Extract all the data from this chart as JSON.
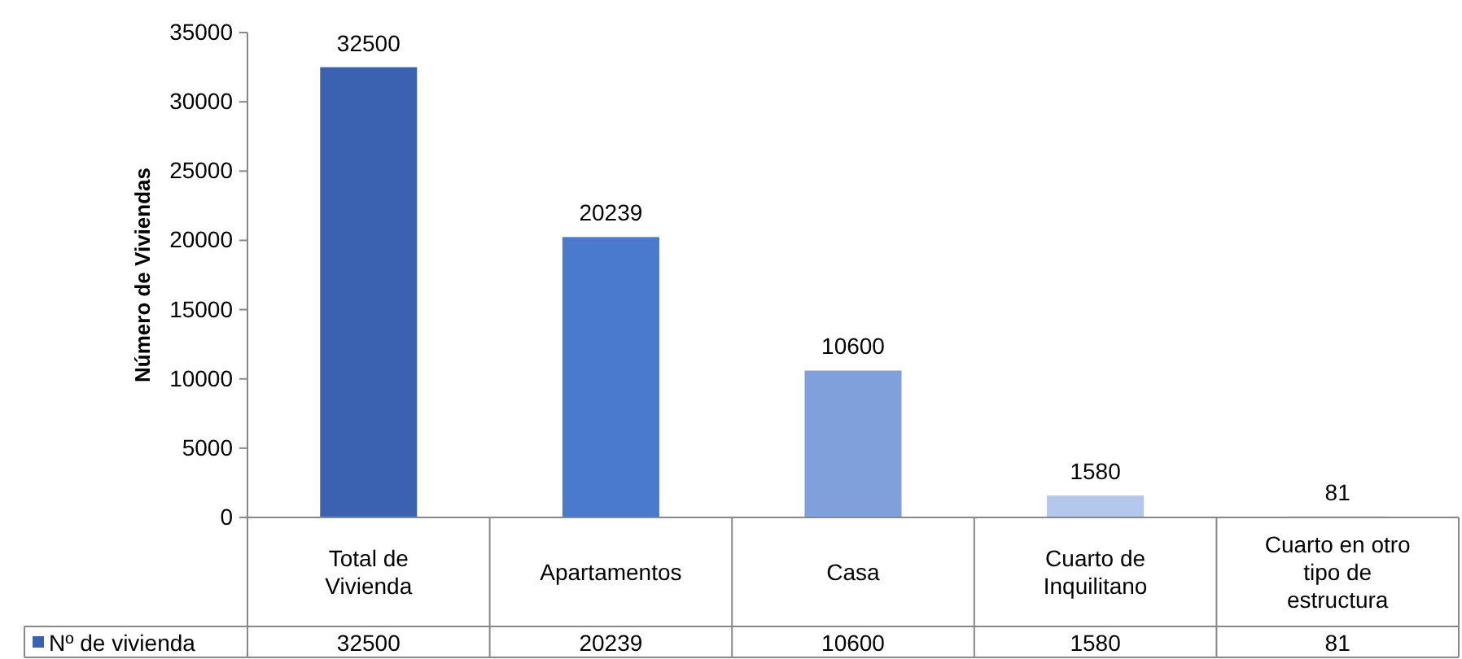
{
  "chart_data": {
    "type": "bar",
    "ylabel": "Número de Viviendas",
    "categories": [
      "Total de Vivienda",
      "Apartamentos",
      "Casa",
      "Cuarto de Inquilitano",
      "Cuarto en otro tipo de estructura"
    ],
    "series": [
      {
        "name": "Nº de vivienda",
        "color": "#3a62b0",
        "colors": [
          "#3a62b0",
          "#4a7acc",
          "#7fa0da",
          "#b4c8ec",
          "#c9d7f0"
        ],
        "values": [
          32500,
          20239,
          10600,
          1580,
          81
        ]
      }
    ],
    "ylim": [
      0,
      35000
    ],
    "yticks": [
      0,
      5000,
      10000,
      15000,
      20000,
      25000,
      30000,
      35000
    ],
    "data_labels": true,
    "annotations": [
      "32500",
      "20239",
      "10600",
      "1580",
      "81"
    ],
    "legend": "bottom left",
    "grid": false
  }
}
